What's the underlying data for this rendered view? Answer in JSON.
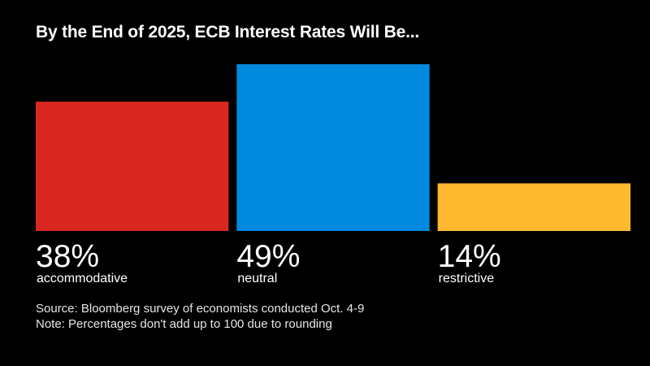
{
  "chart_data": {
    "type": "bar",
    "title": "By the End of 2025, ECB Interest Rates Will Be...",
    "categories": [
      "accommodative",
      "neutral",
      "restrictive"
    ],
    "values": [
      38,
      49,
      14
    ],
    "value_labels": [
      "38%",
      "49%",
      "14%"
    ],
    "colors": [
      "#da2620",
      "#0089de",
      "#ffb92e"
    ],
    "ylim": [
      0,
      49
    ],
    "grid": false,
    "legend": "none"
  },
  "footer": {
    "source": "Source: Bloomberg survey of economists conducted Oct. 4-9",
    "note": "Note: Percentages don't add up to 100 due to rounding"
  }
}
